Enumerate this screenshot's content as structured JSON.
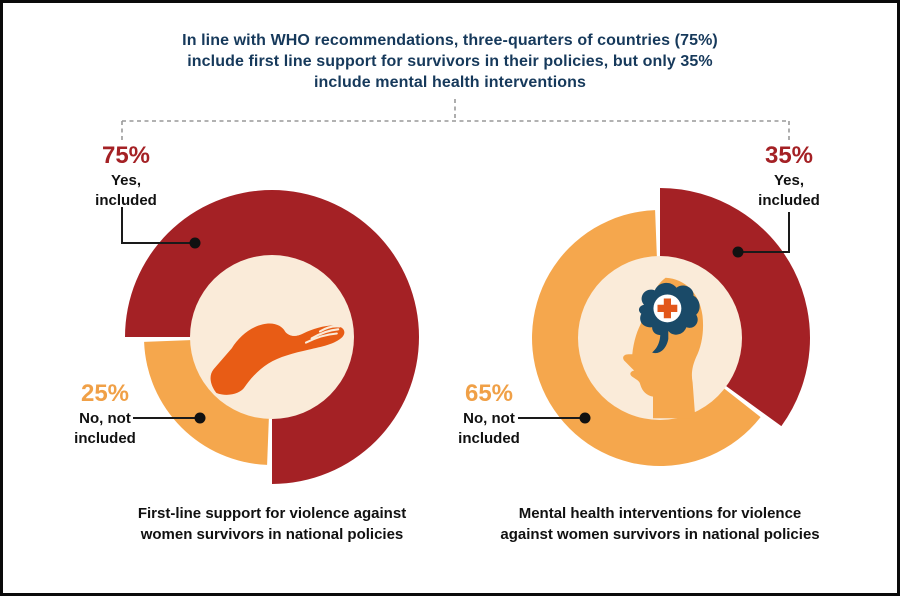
{
  "figure": {
    "title": "In line with WHO recommendations, three-quarters of countries (75%)\ninclude first line support for survivors in their policies, but only 35%\ninclude mental health interventions"
  },
  "chart_data": [
    {
      "type": "pie",
      "variant": "donut",
      "caption": "First-line support for violence against\nwomen survivors in national policies",
      "center_icon": "open-hand-icon",
      "slices": [
        {
          "label": "Yes, included",
          "value": 75,
          "pct_label": "75%",
          "callout_lines": "Yes,\nincluded",
          "color": "#A42125"
        },
        {
          "label": "No, not included",
          "value": 25,
          "pct_label": "25%",
          "callout_lines": "No, not\nincluded",
          "color": "#F0A047"
        }
      ],
      "layout": {
        "start_deg": 270,
        "gap_deg": 2.2,
        "r_yes": 147,
        "r_no": 128,
        "r_inner": 82
      }
    },
    {
      "type": "pie",
      "variant": "donut",
      "caption": "Mental health interventions for violence\nagainst women survivors in national policies",
      "center_icon": "head-brain-medical-icon",
      "slices": [
        {
          "label": "Yes, included",
          "value": 35,
          "pct_label": "35%",
          "callout_lines": "Yes,\nincluded",
          "color": "#A42125"
        },
        {
          "label": "No, not included",
          "value": 65,
          "pct_label": "65%",
          "callout_lines": "No, not\nincluded",
          "color": "#F0A047"
        }
      ],
      "layout": {
        "start_deg": 0,
        "gap_deg": 2.2,
        "r_yes": 150,
        "r_no": 128,
        "r_inner": 82
      }
    }
  ],
  "colors": {
    "slice_yes": "#A42125",
    "slice_no": "#F5A74D",
    "donut_hole": "#FAEBD9",
    "title_navy": "#16395B",
    "hand_orange": "#E85C15",
    "brain_navy": "#1A4A68",
    "cross_orange": "#E2571B",
    "text_black": "#111111",
    "leader_line": "#1a1a1a",
    "bracket_gray": "#999999"
  }
}
